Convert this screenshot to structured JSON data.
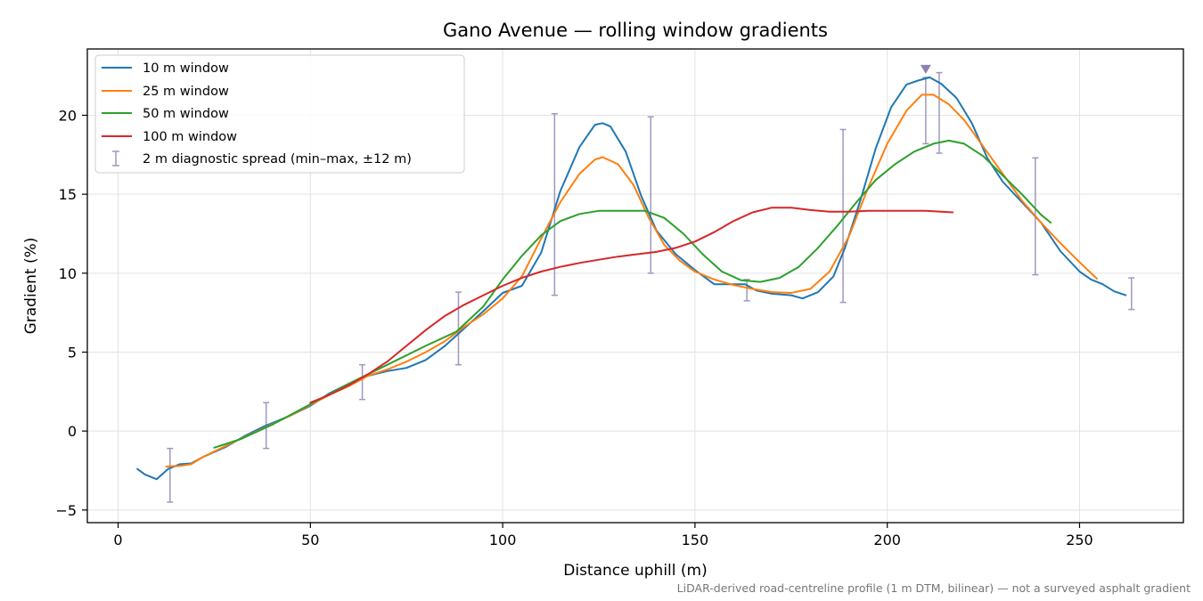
{
  "chart_data": {
    "type": "line",
    "title": "Gano Avenue — rolling window gradients",
    "xlabel": "Distance uphill (m)",
    "ylabel": "Gradient (%)",
    "xlim": [
      -8,
      277
    ],
    "ylim": [
      -5.8,
      24.2
    ],
    "xticks": [
      0,
      50,
      100,
      150,
      200,
      250
    ],
    "yticks": [
      -5,
      0,
      5,
      10,
      15,
      20
    ],
    "grid": true,
    "legend_position": "top-left",
    "footnote": "LiDAR-derived road-centreline profile (1 m DTM, bilinear) — not a surveyed asphalt gradient",
    "series": [
      {
        "name": "10 m window",
        "color": "#1f77b4",
        "points": [
          [
            5,
            -2.4
          ],
          [
            7,
            -2.75
          ],
          [
            10,
            -3.05
          ],
          [
            13,
            -2.4
          ],
          [
            16,
            -2.1
          ],
          [
            19,
            -2.05
          ],
          [
            22,
            -1.65
          ],
          [
            28,
            -1.0
          ],
          [
            33,
            -0.3
          ],
          [
            38,
            0.3
          ],
          [
            45,
            1.0
          ],
          [
            50,
            1.6
          ],
          [
            55,
            2.4
          ],
          [
            60,
            3.0
          ],
          [
            65,
            3.5
          ],
          [
            70,
            3.8
          ],
          [
            75,
            4.0
          ],
          [
            80,
            4.5
          ],
          [
            85,
            5.4
          ],
          [
            90,
            6.5
          ],
          [
            95,
            7.6
          ],
          [
            100,
            8.75
          ],
          [
            105,
            9.2
          ],
          [
            110,
            11.3
          ],
          [
            115,
            15.2
          ],
          [
            120,
            18.0
          ],
          [
            124,
            19.4
          ],
          [
            126,
            19.5
          ],
          [
            128,
            19.3
          ],
          [
            132,
            17.7
          ],
          [
            136,
            14.9
          ],
          [
            140,
            12.7
          ],
          [
            145,
            11.2
          ],
          [
            150,
            10.2
          ],
          [
            155,
            9.3
          ],
          [
            160,
            9.3
          ],
          [
            163,
            9.3
          ],
          [
            166,
            8.9
          ],
          [
            170,
            8.7
          ],
          [
            175,
            8.6
          ],
          [
            178,
            8.4
          ],
          [
            182,
            8.8
          ],
          [
            186,
            9.8
          ],
          [
            189,
            11.6
          ],
          [
            193,
            14.6
          ],
          [
            197,
            17.9
          ],
          [
            201,
            20.5
          ],
          [
            205,
            21.95
          ],
          [
            208,
            22.2
          ],
          [
            211,
            22.4
          ],
          [
            214,
            22.0
          ],
          [
            218,
            21.1
          ],
          [
            222,
            19.5
          ],
          [
            226,
            17.3
          ],
          [
            230,
            15.8
          ],
          [
            235,
            14.5
          ],
          [
            240,
            13.2
          ],
          [
            245,
            11.4
          ],
          [
            250,
            10.1
          ],
          [
            253,
            9.6
          ],
          [
            256,
            9.3
          ],
          [
            259,
            8.85
          ],
          [
            262,
            8.6
          ]
        ]
      },
      {
        "name": "25 m window",
        "color": "#ff7f0e",
        "points": [
          [
            12.5,
            -2.25
          ],
          [
            16,
            -2.2
          ],
          [
            19,
            -2.1
          ],
          [
            22,
            -1.65
          ],
          [
            30,
            -0.7
          ],
          [
            38,
            0.2
          ],
          [
            45,
            1.0
          ],
          [
            50,
            1.65
          ],
          [
            55,
            2.3
          ],
          [
            60,
            2.85
          ],
          [
            65,
            3.5
          ],
          [
            70,
            3.9
          ],
          [
            75,
            4.4
          ],
          [
            80,
            5.0
          ],
          [
            85,
            5.7
          ],
          [
            90,
            6.6
          ],
          [
            95,
            7.4
          ],
          [
            100,
            8.4
          ],
          [
            105,
            9.8
          ],
          [
            110,
            12.2
          ],
          [
            115,
            14.5
          ],
          [
            120,
            16.3
          ],
          [
            124,
            17.2
          ],
          [
            126,
            17.35
          ],
          [
            130,
            16.9
          ],
          [
            134,
            15.6
          ],
          [
            138,
            13.5
          ],
          [
            142,
            11.8
          ],
          [
            146,
            10.8
          ],
          [
            150,
            10.1
          ],
          [
            155,
            9.6
          ],
          [
            160,
            9.25
          ],
          [
            165,
            9.0
          ],
          [
            170,
            8.8
          ],
          [
            175,
            8.75
          ],
          [
            180,
            9.0
          ],
          [
            185,
            10.1
          ],
          [
            190,
            12.3
          ],
          [
            195,
            15.4
          ],
          [
            200,
            18.2
          ],
          [
            205,
            20.3
          ],
          [
            209,
            21.3
          ],
          [
            212,
            21.3
          ],
          [
            216,
            20.7
          ],
          [
            220,
            19.7
          ],
          [
            225,
            18.0
          ],
          [
            230,
            16.3
          ],
          [
            235,
            14.6
          ],
          [
            240,
            13.2
          ],
          [
            245,
            11.9
          ],
          [
            250,
            10.7
          ],
          [
            254.5,
            9.65
          ]
        ]
      },
      {
        "name": "50 m window",
        "color": "#2ca02c",
        "points": [
          [
            25,
            -1.05
          ],
          [
            32,
            -0.5
          ],
          [
            40,
            0.4
          ],
          [
            50,
            1.7
          ],
          [
            60,
            3.0
          ],
          [
            70,
            4.2
          ],
          [
            80,
            5.4
          ],
          [
            88,
            6.3
          ],
          [
            95,
            7.9
          ],
          [
            100,
            9.6
          ],
          [
            105,
            11.1
          ],
          [
            110,
            12.4
          ],
          [
            115,
            13.3
          ],
          [
            120,
            13.75
          ],
          [
            125,
            13.95
          ],
          [
            132,
            13.95
          ],
          [
            137,
            13.95
          ],
          [
            142,
            13.5
          ],
          [
            147,
            12.5
          ],
          [
            152,
            11.2
          ],
          [
            157,
            10.1
          ],
          [
            162,
            9.55
          ],
          [
            167,
            9.45
          ],
          [
            172,
            9.7
          ],
          [
            177,
            10.4
          ],
          [
            182,
            11.6
          ],
          [
            187,
            13.0
          ],
          [
            192,
            14.5
          ],
          [
            197,
            15.9
          ],
          [
            202,
            16.9
          ],
          [
            207,
            17.7
          ],
          [
            212,
            18.2
          ],
          [
            216,
            18.4
          ],
          [
            220,
            18.2
          ],
          [
            225,
            17.4
          ],
          [
            230,
            16.2
          ],
          [
            235,
            15.0
          ],
          [
            240,
            13.7
          ],
          [
            242.5,
            13.2
          ]
        ]
      },
      {
        "name": "100 m window",
        "color": "#d62728",
        "points": [
          [
            50,
            1.8
          ],
          [
            55,
            2.3
          ],
          [
            60,
            2.9
          ],
          [
            65,
            3.6
          ],
          [
            70,
            4.4
          ],
          [
            75,
            5.4
          ],
          [
            80,
            6.4
          ],
          [
            85,
            7.3
          ],
          [
            90,
            8.0
          ],
          [
            95,
            8.6
          ],
          [
            100,
            9.2
          ],
          [
            105,
            9.7
          ],
          [
            110,
            10.1
          ],
          [
            115,
            10.4
          ],
          [
            120,
            10.65
          ],
          [
            125,
            10.85
          ],
          [
            130,
            11.05
          ],
          [
            135,
            11.2
          ],
          [
            140,
            11.35
          ],
          [
            145,
            11.6
          ],
          [
            150,
            12.0
          ],
          [
            155,
            12.6
          ],
          [
            160,
            13.3
          ],
          [
            165,
            13.85
          ],
          [
            170,
            14.15
          ],
          [
            175,
            14.15
          ],
          [
            180,
            14.0
          ],
          [
            185,
            13.9
          ],
          [
            190,
            13.9
          ],
          [
            195,
            13.95
          ],
          [
            200,
            13.95
          ],
          [
            205,
            13.95
          ],
          [
            210,
            13.95
          ],
          [
            217,
            13.85
          ]
        ]
      }
    ],
    "errorbars": {
      "name": "2 m diagnostic spread (min–max, ±12 m)",
      "color": "#9e98bf",
      "points": [
        {
          "x": 13.5,
          "min": -4.5,
          "max": -1.1
        },
        {
          "x": 38.5,
          "min": -1.1,
          "max": 1.8
        },
        {
          "x": 63.5,
          "min": 2.0,
          "max": 4.2
        },
        {
          "x": 88.5,
          "min": 4.2,
          "max": 8.8
        },
        {
          "x": 113.5,
          "min": 8.6,
          "max": 20.1
        },
        {
          "x": 138.5,
          "min": 10.0,
          "max": 19.9
        },
        {
          "x": 163.5,
          "min": 8.25,
          "max": 9.6
        },
        {
          "x": 188.5,
          "min": 8.15,
          "max": 19.1
        },
        {
          "x": 210,
          "min": 18.2,
          "max": 22.4
        },
        {
          "x": 213.5,
          "min": 17.6,
          "max": 22.7
        },
        {
          "x": 238.5,
          "min": 9.9,
          "max": 17.3
        },
        {
          "x": 263.5,
          "min": 7.7,
          "max": 9.7
        }
      ]
    },
    "peak_marker": {
      "x": 210,
      "y": 22.4,
      "color": "#8c82b0"
    }
  }
}
